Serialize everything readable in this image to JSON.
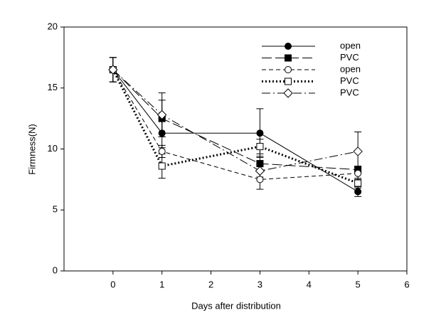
{
  "chart_data": {
    "type": "line",
    "x_label": "Days after distribution",
    "y_label": "Firmness(N)",
    "x": [
      0,
      1,
      3,
      5
    ],
    "xlim": [
      -1,
      6
    ],
    "xticks": [
      0,
      1,
      2,
      3,
      4,
      5,
      6
    ],
    "ylim": [
      0,
      20
    ],
    "yticks": [
      0,
      5,
      10,
      15,
      20
    ],
    "legend": "upper-right",
    "series": [
      {
        "name": "open",
        "color": "#000000",
        "marker": "circle",
        "marker_fill": "#000000",
        "dash": "none",
        "width": 1,
        "values": [
          16.5,
          11.3,
          11.3,
          6.5
        ],
        "errors": [
          1,
          1.2,
          2,
          0.4
        ]
      },
      {
        "name": "PVC",
        "color": "#000000",
        "marker": "square",
        "marker_fill": "#000000",
        "dash": "14 5",
        "width": 1,
        "values": [
          16.5,
          12.5,
          8.8,
          8.3
        ],
        "errors": [
          1,
          1.5,
          0.6,
          0.3
        ]
      },
      {
        "name": "open",
        "color": "#000000",
        "marker": "circle",
        "marker_fill": "#ffffff",
        "dash": "6 4",
        "width": 1,
        "values": [
          16.5,
          9.8,
          7.5,
          8.0
        ],
        "errors": [
          1,
          0.5,
          0.8,
          0.5
        ]
      },
      {
        "name": "PVC",
        "color": "#000000",
        "marker": "square",
        "marker_fill": "#ffffff",
        "dash": "2 3",
        "width": 3,
        "values": [
          16.5,
          8.6,
          10.2,
          7.2
        ],
        "errors": [
          1,
          1,
          0.6,
          0.4
        ]
      },
      {
        "name": "PVC",
        "color": "#000000",
        "marker": "diamond",
        "marker_fill": "#ffffff",
        "dash": "12 4 2 4",
        "width": 1,
        "values": [
          16.5,
          12.8,
          8.2,
          9.8
        ],
        "errors": [
          1,
          1.8,
          0.5,
          1.6
        ]
      }
    ]
  }
}
